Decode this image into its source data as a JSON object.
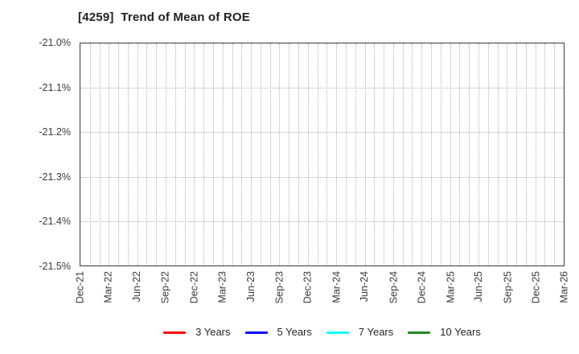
{
  "chart_data": {
    "type": "line",
    "title": "[4259]  Trend of Mean of ROE",
    "x_tick_labels": [
      "Dec-21",
      "Mar-22",
      "Jun-22",
      "Sep-22",
      "Dec-22",
      "Mar-23",
      "Jun-23",
      "Sep-23",
      "Dec-23",
      "Mar-24",
      "Jun-24",
      "Sep-24",
      "Dec-24",
      "Mar-25",
      "Jun-25",
      "Sep-25",
      "Dec-25",
      "Mar-26"
    ],
    "months_span": 51,
    "y_tick_labels": [
      "-21.0%",
      "-21.1%",
      "-21.2%",
      "-21.3%",
      "-21.4%",
      "-21.5%"
    ],
    "ylim": [
      -21.5,
      -21.0
    ],
    "y_step": 0.1,
    "grid_style": "dotted",
    "grid_color": "#b0b0b0",
    "legend_position": "bottom-center",
    "series": [
      {
        "name": "3 Years",
        "color": "#ff0000",
        "values": []
      },
      {
        "name": "5 Years",
        "color": "#0000ff",
        "values": []
      },
      {
        "name": "7 Years",
        "color": "#00ffff",
        "values": []
      },
      {
        "name": "10 Years",
        "color": "#228b22",
        "values": []
      }
    ]
  }
}
